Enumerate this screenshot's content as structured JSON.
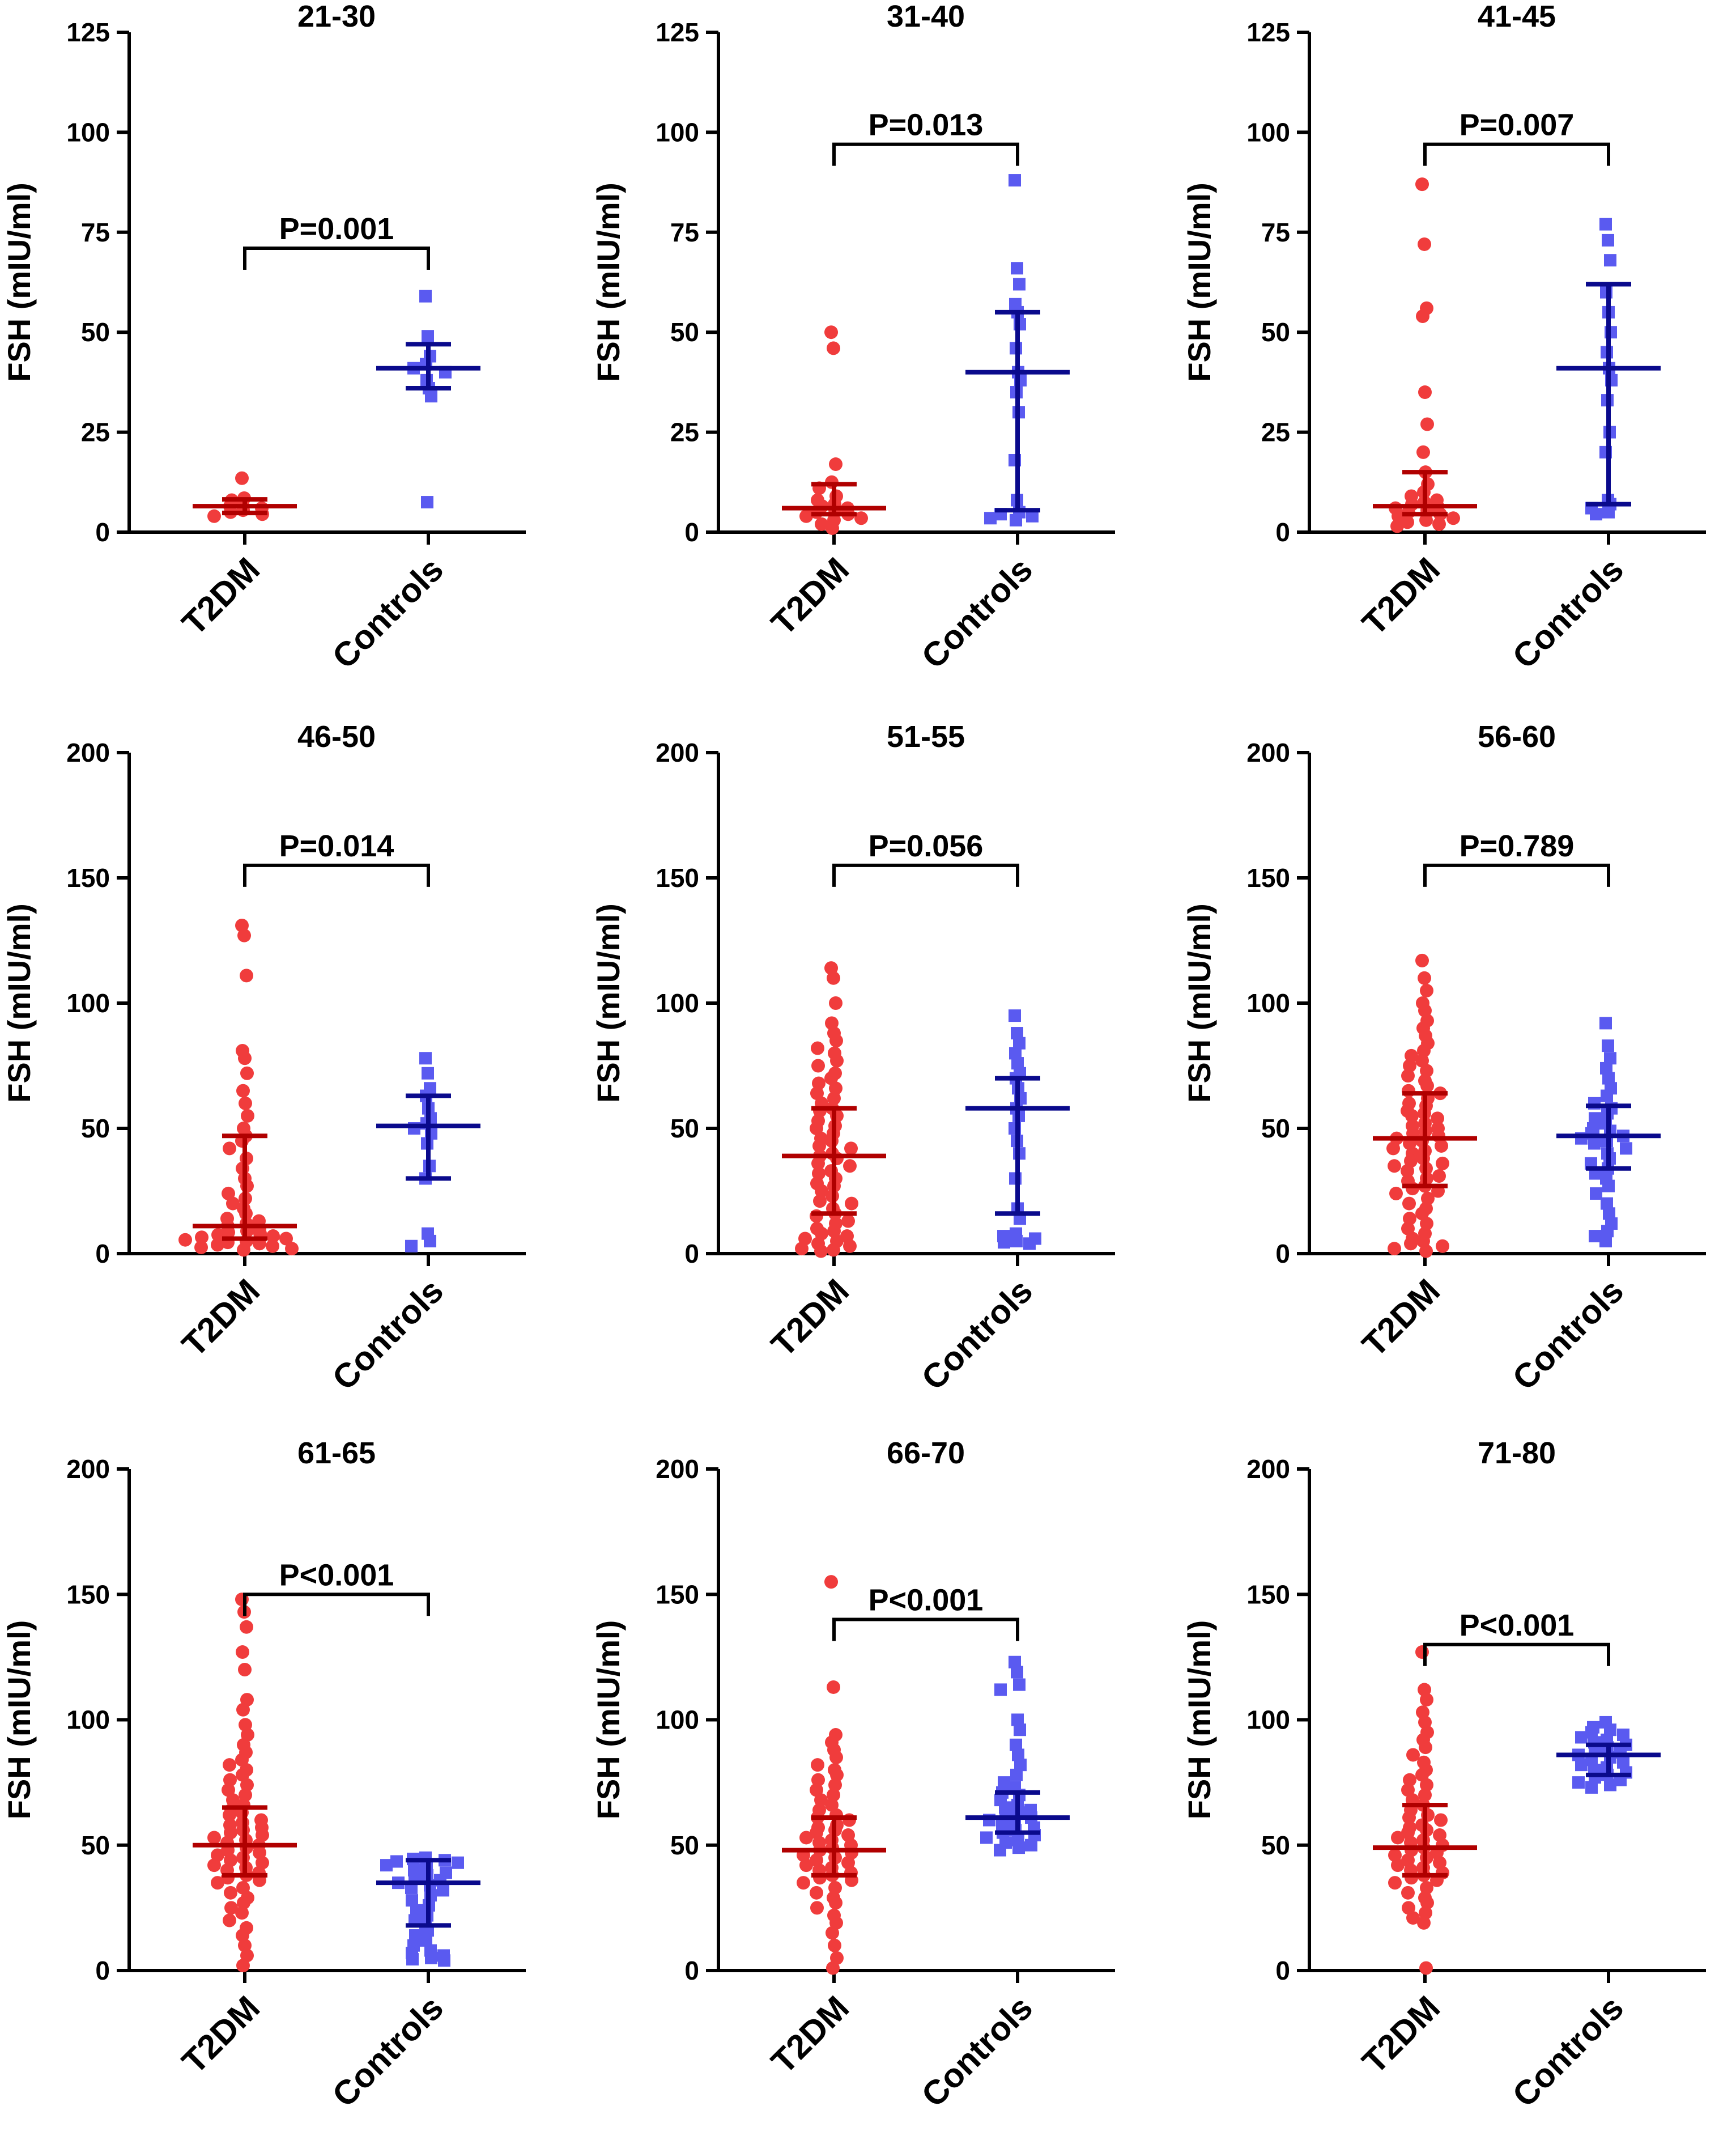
{
  "figure": {
    "ylabel": "FSH (mIU/ml)",
    "group_colors": {
      "T2DM": {
        "point": "#f03c3c",
        "line": "#b00000"
      },
      "Controls": {
        "point": "#5a5af0",
        "line": "#0a0a8c"
      }
    }
  },
  "chart_data": [
    {
      "type": "scatter",
      "title": "21-30",
      "ylabel": "FSH (mIU/ml)",
      "categories": [
        "T2DM",
        "Controls"
      ],
      "ylim": [
        0,
        125
      ],
      "yticks": [
        0,
        25,
        50,
        75,
        100,
        125
      ],
      "pvalue": "P=0.001",
      "bracket_y": 71,
      "series": [
        {
          "name": "T2DM",
          "marker": "circle",
          "median": 6.5,
          "q1": 4.8,
          "q3": 8.2,
          "values": [
            13.5,
            8.5,
            8,
            7,
            6.5,
            6,
            5.5,
            5,
            4.5,
            4
          ]
        },
        {
          "name": "Controls",
          "marker": "square",
          "median": 41,
          "q1": 36,
          "q3": 47,
          "values": [
            59,
            49,
            44,
            42,
            41,
            40,
            38,
            36,
            34,
            7.5
          ]
        }
      ]
    },
    {
      "type": "scatter",
      "title": "31-40",
      "ylabel": "FSH (mIU/ml)",
      "categories": [
        "T2DM",
        "Controls"
      ],
      "ylim": [
        0,
        125
      ],
      "yticks": [
        0,
        25,
        50,
        75,
        100,
        125
      ],
      "pvalue": "P=0.013",
      "bracket_y": 97,
      "series": [
        {
          "name": "T2DM",
          "marker": "circle",
          "median": 6,
          "q1": 4.5,
          "q3": 12,
          "values": [
            50,
            46,
            17,
            12.5,
            11,
            9,
            8,
            7,
            6.5,
            6,
            5.5,
            5,
            4.5,
            4,
            3.5,
            3,
            2,
            1
          ]
        },
        {
          "name": "Controls",
          "marker": "square",
          "median": 40,
          "q1": 5.5,
          "q3": 55,
          "values": [
            88,
            66,
            62,
            57,
            55,
            52,
            46,
            40,
            38,
            35,
            30,
            18,
            8,
            5,
            4.5,
            4,
            3.5,
            3
          ]
        }
      ]
    },
    {
      "type": "scatter",
      "title": "41-45",
      "ylabel": "FSH (mIU/ml)",
      "categories": [
        "T2DM",
        "Controls"
      ],
      "ylim": [
        0,
        125
      ],
      "yticks": [
        0,
        25,
        50,
        75,
        100,
        125
      ],
      "pvalue": "P=0.007",
      "bracket_y": 97,
      "series": [
        {
          "name": "T2DM",
          "marker": "circle",
          "median": 6.5,
          "q1": 4.5,
          "q3": 15,
          "values": [
            87,
            72,
            56,
            54,
            35,
            27,
            20,
            15,
            12,
            10,
            9,
            8,
            7.5,
            7,
            6.5,
            6,
            5.5,
            5,
            4.5,
            4,
            3.5,
            3,
            2.5,
            2,
            1.5
          ]
        },
        {
          "name": "Controls",
          "marker": "square",
          "median": 41,
          "q1": 7,
          "q3": 62,
          "values": [
            77,
            73,
            68,
            60,
            55,
            50,
            45,
            41,
            38,
            33,
            25,
            20,
            8,
            7,
            6,
            5,
            4.5
          ]
        }
      ]
    },
    {
      "type": "scatter",
      "title": "46-50",
      "ylabel": "FSH (mIU/ml)",
      "categories": [
        "T2DM",
        "Controls"
      ],
      "ylim": [
        0,
        200
      ],
      "yticks": [
        0,
        50,
        100,
        150,
        200
      ],
      "pvalue": "P=0.014",
      "bracket_y": 155,
      "series": [
        {
          "name": "T2DM",
          "marker": "circle",
          "median": 11,
          "q1": 6,
          "q3": 47,
          "values": [
            131,
            127,
            111,
            81,
            78,
            72,
            65,
            60,
            55,
            50,
            47,
            45,
            42,
            38,
            34,
            30,
            27,
            24,
            22,
            20,
            18,
            16,
            14,
            13,
            12,
            11,
            10,
            9,
            8.5,
            8,
            7.5,
            7,
            6.5,
            6,
            5.5,
            5,
            4.5,
            4,
            3.5,
            3,
            2.5,
            2,
            1.5
          ]
        },
        {
          "name": "Controls",
          "marker": "square",
          "median": 51,
          "q1": 30,
          "q3": 63,
          "values": [
            78,
            72,
            66,
            63,
            58,
            54,
            52,
            50,
            48,
            44,
            35,
            30,
            8,
            5,
            3
          ]
        }
      ]
    },
    {
      "type": "scatter",
      "title": "51-55",
      "ylabel": "FSH (mIU/ml)",
      "categories": [
        "T2DM",
        "Controls"
      ],
      "ylim": [
        0,
        200
      ],
      "yticks": [
        0,
        50,
        100,
        150,
        200
      ],
      "pvalue": "P=0.056",
      "bracket_y": 155,
      "series": [
        {
          "name": "T2DM",
          "marker": "circle",
          "median": 39,
          "q1": 16,
          "q3": 58,
          "values": [
            114,
            110,
            100,
            92,
            88,
            85,
            82,
            80,
            77,
            75,
            72,
            70,
            68,
            66,
            64,
            62,
            60,
            58,
            57,
            55,
            53,
            51,
            50,
            48,
            46,
            45,
            43,
            42,
            40,
            39,
            38,
            36,
            35,
            33,
            32,
            30,
            28,
            27,
            25,
            23,
            21,
            20,
            18,
            16,
            15,
            13,
            12,
            10,
            9,
            8,
            7,
            6,
            5,
            4,
            3,
            2,
            1.5,
            1
          ]
        },
        {
          "name": "Controls",
          "marker": "square",
          "median": 58,
          "q1": 16,
          "q3": 70,
          "values": [
            95,
            88,
            84,
            80,
            76,
            72,
            70,
            66,
            62,
            58,
            55,
            50,
            45,
            40,
            30,
            18,
            14,
            8,
            7,
            6,
            5,
            4.5,
            4
          ]
        }
      ]
    },
    {
      "type": "scatter",
      "title": "56-60",
      "ylabel": "FSH (mIU/ml)",
      "categories": [
        "T2DM",
        "Controls"
      ],
      "ylim": [
        0,
        200
      ],
      "yticks": [
        0,
        50,
        100,
        150,
        200
      ],
      "pvalue": "P=0.789",
      "bracket_y": 155,
      "series": [
        {
          "name": "T2DM",
          "marker": "circle",
          "median": 46,
          "q1": 27,
          "q3": 64,
          "values": [
            117,
            110,
            105,
            100,
            97,
            93,
            90,
            87,
            84,
            81,
            79,
            77,
            75,
            73,
            71,
            69,
            67,
            65,
            64,
            62,
            60,
            59,
            57,
            56,
            55,
            54,
            52,
            51,
            50,
            49,
            48,
            47,
            46,
            45,
            44,
            43,
            42,
            41,
            40,
            38,
            37,
            36,
            35,
            34,
            33,
            31,
            30,
            29,
            27,
            26,
            25,
            24,
            22,
            20,
            18,
            16,
            14,
            12,
            10,
            8,
            6,
            5,
            4,
            3,
            2,
            1
          ]
        },
        {
          "name": "Controls",
          "marker": "square",
          "median": 47,
          "q1": 34,
          "q3": 59,
          "values": [
            92,
            83,
            78,
            74,
            70,
            66,
            63,
            60,
            58,
            56,
            54,
            52,
            50,
            49,
            48,
            47,
            46,
            45,
            44,
            42,
            40,
            38,
            36,
            34,
            32,
            30,
            27,
            24,
            20,
            16,
            12,
            9,
            7,
            5
          ]
        }
      ]
    },
    {
      "type": "scatter",
      "title": "61-65",
      "ylabel": "FSH (mIU/ml)",
      "categories": [
        "T2DM",
        "Controls"
      ],
      "ylim": [
        0,
        200
      ],
      "yticks": [
        0,
        50,
        100,
        150,
        200
      ],
      "pvalue": "P<0.001",
      "bracket_y": 150,
      "series": [
        {
          "name": "T2DM",
          "marker": "circle",
          "median": 50,
          "q1": 38,
          "q3": 65,
          "values": [
            148,
            143,
            137,
            127,
            120,
            108,
            104,
            98,
            94,
            90,
            87,
            84,
            82,
            80,
            78,
            76,
            74,
            72,
            70,
            68,
            66,
            64,
            63,
            62,
            60,
            59,
            58,
            57,
            56,
            55,
            54,
            53,
            52,
            51,
            50,
            49,
            48,
            47,
            46,
            45,
            44,
            43,
            42,
            41,
            40,
            39,
            38,
            37,
            36,
            35,
            33,
            31,
            29,
            27,
            25,
            23,
            20,
            17,
            14,
            10,
            6,
            2
          ]
        },
        {
          "name": "Controls",
          "marker": "square",
          "median": 35,
          "q1": 18,
          "q3": 44,
          "values": [
            45,
            44.5,
            44,
            43.5,
            43,
            42,
            41,
            40,
            39,
            38,
            37,
            36,
            35,
            34,
            33,
            32,
            30,
            28,
            26,
            24,
            22,
            20,
            18,
            16,
            14,
            12,
            10,
            8,
            7,
            6,
            5,
            4.5,
            4
          ]
        }
      ]
    },
    {
      "type": "scatter",
      "title": "66-70",
      "ylabel": "FSH (mIU/ml)",
      "categories": [
        "T2DM",
        "Controls"
      ],
      "ylim": [
        0,
        200
      ],
      "yticks": [
        0,
        50,
        100,
        150,
        200
      ],
      "pvalue": "P<0.001",
      "bracket_y": 140,
      "series": [
        {
          "name": "T2DM",
          "marker": "circle",
          "median": 48,
          "q1": 38,
          "q3": 61,
          "values": [
            155,
            113,
            94,
            91,
            88,
            85,
            82,
            80,
            78,
            76,
            74,
            72,
            70,
            68,
            66,
            64,
            62,
            61,
            60,
            58,
            57,
            56,
            55,
            54,
            53,
            52,
            51,
            50,
            49,
            48,
            47,
            46,
            45,
            44,
            43,
            42,
            41,
            40,
            39,
            38,
            37,
            36,
            35,
            33,
            31,
            29,
            27,
            25,
            22,
            19,
            15,
            10,
            5,
            1
          ]
        },
        {
          "name": "Controls",
          "marker": "square",
          "median": 61,
          "q1": 55,
          "q3": 71,
          "values": [
            123,
            119,
            114,
            112,
            100,
            96,
            90,
            86,
            82,
            78,
            75,
            73,
            71,
            70,
            68,
            66,
            65,
            64,
            63,
            62,
            61,
            60,
            59,
            58,
            57,
            56,
            55,
            54,
            53,
            52,
            51,
            50,
            49,
            48
          ]
        }
      ]
    },
    {
      "type": "scatter",
      "title": "71-80",
      "ylabel": "FSH (mIU/ml)",
      "categories": [
        "T2DM",
        "Controls"
      ],
      "ylim": [
        0,
        200
      ],
      "yticks": [
        0,
        50,
        100,
        150,
        200
      ],
      "pvalue": "P<0.001",
      "bracket_y": 130,
      "series": [
        {
          "name": "T2DM",
          "marker": "circle",
          "median": 49,
          "q1": 38,
          "q3": 66,
          "values": [
            127,
            112,
            108,
            103,
            99,
            95,
            92,
            89,
            86,
            83,
            80,
            78,
            76,
            74,
            72,
            70,
            68,
            66,
            64,
            62,
            61,
            60,
            58,
            57,
            56,
            55,
            54,
            53,
            52,
            51,
            50,
            49,
            48,
            47,
            46,
            45,
            44,
            43,
            42,
            41,
            40,
            39,
            38,
            37,
            36,
            35,
            33,
            31,
            29,
            27,
            25,
            23,
            21,
            19,
            1
          ]
        },
        {
          "name": "Controls",
          "marker": "square",
          "median": 86,
          "q1": 78,
          "q3": 90,
          "values": [
            99,
            97,
            96,
            95,
            94,
            93,
            92,
            91,
            90,
            89,
            88,
            87,
            86,
            85,
            84,
            83,
            82,
            81,
            80,
            79,
            78,
            77,
            76,
            75,
            74,
            73
          ]
        }
      ]
    }
  ]
}
